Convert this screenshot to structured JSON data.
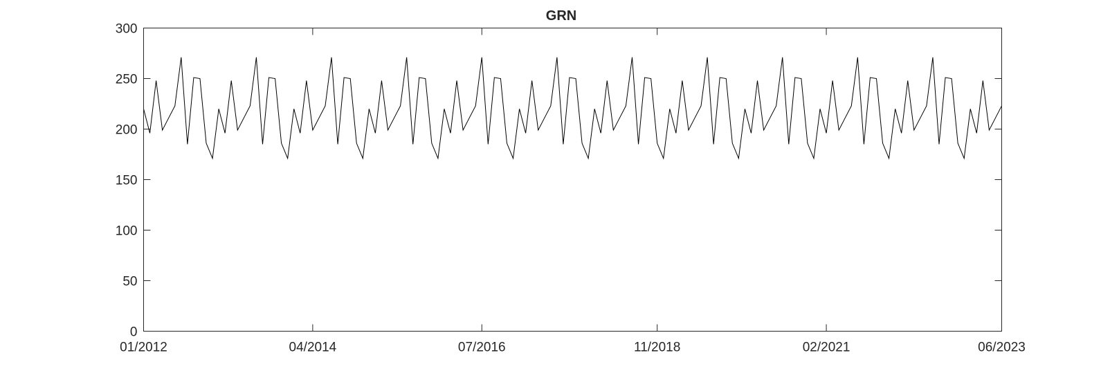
{
  "chart_data": {
    "type": "line",
    "title": "GRN",
    "xlabel": "",
    "ylabel": "",
    "x_axis": {
      "scale": "time",
      "range": [
        "01/2012",
        "06/2023"
      ],
      "ticks": [
        "01/2012",
        "04/2014",
        "07/2016",
        "11/2018",
        "02/2021",
        "06/2023"
      ]
    },
    "ylim": [
      0,
      300
    ],
    "yticks": [
      0,
      50,
      100,
      150,
      200,
      250,
      300
    ],
    "grid": false,
    "legend": "none",
    "line_color": "#000000",
    "x": [
      "01/2012",
      "02/2012",
      "03/2012",
      "04/2012",
      "05/2012",
      "06/2012",
      "07/2012",
      "08/2012",
      "09/2012",
      "10/2012",
      "11/2012",
      "12/2012",
      "01/2013",
      "02/2013",
      "03/2013",
      "04/2013",
      "05/2013",
      "06/2013",
      "07/2013",
      "08/2013",
      "09/2013",
      "10/2013",
      "11/2013",
      "12/2013",
      "01/2014",
      "02/2014",
      "03/2014",
      "04/2014",
      "05/2014",
      "06/2014",
      "07/2014",
      "08/2014",
      "09/2014",
      "10/2014",
      "11/2014",
      "12/2014",
      "01/2015",
      "02/2015",
      "03/2015",
      "04/2015",
      "05/2015",
      "06/2015",
      "07/2015",
      "08/2015",
      "09/2015",
      "10/2015",
      "11/2015",
      "12/2015",
      "01/2016",
      "02/2016",
      "03/2016",
      "04/2016",
      "05/2016",
      "06/2016",
      "07/2016",
      "08/2016",
      "09/2016",
      "10/2016",
      "11/2016",
      "12/2016",
      "01/2017",
      "02/2017",
      "03/2017",
      "04/2017",
      "05/2017",
      "06/2017",
      "07/2017",
      "08/2017",
      "09/2017",
      "10/2017",
      "11/2017",
      "12/2017",
      "01/2018",
      "02/2018",
      "03/2018",
      "04/2018",
      "05/2018",
      "06/2018",
      "07/2018",
      "08/2018",
      "09/2018",
      "10/2018",
      "11/2018",
      "12/2018",
      "01/2019",
      "02/2019",
      "03/2019",
      "04/2019",
      "05/2019",
      "06/2019",
      "07/2019",
      "08/2019",
      "09/2019",
      "10/2019",
      "11/2019",
      "12/2019",
      "01/2020",
      "02/2020",
      "03/2020",
      "04/2020",
      "05/2020",
      "06/2020",
      "07/2020",
      "08/2020",
      "09/2020",
      "10/2020",
      "11/2020",
      "12/2020",
      "01/2021",
      "02/2021",
      "03/2021",
      "04/2021",
      "05/2021",
      "06/2021",
      "07/2021",
      "08/2021",
      "09/2021",
      "10/2021",
      "11/2021",
      "12/2021",
      "01/2022",
      "02/2022",
      "03/2022",
      "04/2022",
      "05/2022",
      "06/2022",
      "07/2022",
      "08/2022",
      "09/2022",
      "10/2022",
      "11/2022",
      "12/2022",
      "01/2023",
      "02/2023",
      "03/2023",
      "04/2023",
      "05/2023",
      "06/2023"
    ],
    "y": [
      220,
      196,
      248,
      199,
      211,
      223,
      271,
      185,
      251,
      250,
      186,
      171,
      220,
      196,
      248,
      199,
      211,
      223,
      271,
      185,
      251,
      250,
      186,
      171,
      220,
      196,
      248,
      199,
      211,
      223,
      271,
      185,
      251,
      250,
      186,
      171,
      220,
      196,
      248,
      199,
      211,
      223,
      271,
      185,
      251,
      250,
      186,
      171,
      220,
      196,
      248,
      199,
      211,
      223,
      271,
      185,
      251,
      250,
      186,
      171,
      220,
      196,
      248,
      199,
      211,
      223,
      271,
      185,
      251,
      250,
      186,
      171,
      220,
      196,
      248,
      199,
      211,
      223,
      271,
      185,
      251,
      250,
      186,
      171,
      220,
      196,
      248,
      199,
      211,
      223,
      271,
      185,
      251,
      250,
      186,
      171,
      220,
      196,
      248,
      199,
      211,
      223,
      271,
      185,
      251,
      250,
      186,
      171,
      220,
      196,
      248,
      199,
      211,
      223,
      271,
      185,
      251,
      250,
      186,
      171,
      220,
      196,
      248,
      199,
      211,
      223,
      271,
      185,
      251,
      250,
      186,
      171,
      220,
      196,
      248,
      199,
      211,
      223
    ]
  }
}
